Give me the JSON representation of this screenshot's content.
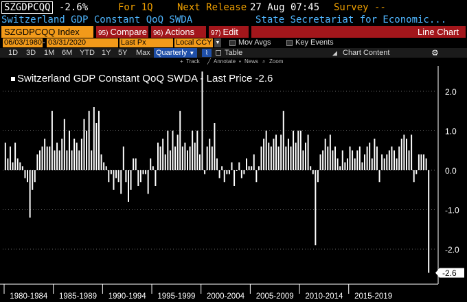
{
  "header": {
    "ticker": "SZGDPCQQ",
    "change": "-2.6%",
    "for": "For 1Q",
    "next_label": "Next Release",
    "next_value": "27 Aug 07:45",
    "survey": "Survey --"
  },
  "subheader": {
    "description": "Switzerland GDP Constant QoQ SWDA",
    "source": "State Secretariat for Economic..."
  },
  "toolbar": {
    "index": "SZGDPCQQ Index",
    "compare_num": "95)",
    "compare": "Compare",
    "actions_num": "96)",
    "actions": "Actions",
    "edit_num": "97)",
    "edit": "Edit",
    "chart_type": "Line Chart"
  },
  "options": {
    "start_date": "06/03/1980",
    "end_date": "03/31/2020",
    "field": "Last Px",
    "currency": "Local CCY",
    "mov_avgs": "Mov Avgs",
    "key_events": "Key Events"
  },
  "periods": {
    "items": [
      "1D",
      "3D",
      "1M",
      "6M",
      "YTD",
      "1Y",
      "5Y",
      "Max"
    ],
    "frequency": "Quarterly",
    "table": "Table",
    "chart_content": "Chart Content"
  },
  "tools": {
    "track": "Track",
    "annotate": "Annotate",
    "news": "News",
    "zoom": "Zoom"
  },
  "colors": {
    "amber": "#f0a000",
    "blue_text": "#4fb6ff",
    "red_button": "#a3161b",
    "orange_field": "#f29a1a",
    "bar": "#ffffff"
  },
  "chart_data": {
    "type": "bar",
    "title": "Switzerland GDP Constant QoQ SWDA - Last Price -2.6",
    "ylim": [
      -2.8,
      2.5
    ],
    "y_ticks": [
      -2.0,
      -1.0,
      0.0,
      1.0,
      2.0
    ],
    "y_tick_labels": [
      "-2.0",
      "-1.0",
      "0.0",
      "1.0",
      "2.0"
    ],
    "last_value_label": "-2.6",
    "x_labels": [
      "1980-1984",
      "1985-1989",
      "1990-1994",
      "1995-1999",
      "2000-2004",
      "2005-2009",
      "2010-2014",
      "2015-2019"
    ],
    "values": [
      0.7,
      0.3,
      0.6,
      0.2,
      0.7,
      0.3,
      0.2,
      0.1,
      -0.2,
      -0.3,
      -1.2,
      -0.5,
      -0.3,
      0.4,
      0.5,
      0.6,
      0.8,
      0.6,
      0.6,
      1.5,
      0.5,
      0.7,
      0.5,
      0.8,
      1.3,
      0.5,
      1.0,
      0.5,
      0.8,
      0.7,
      0.5,
      0.8,
      1.3,
      1.0,
      1.5,
      0.5,
      1.6,
      1.2,
      1.5,
      0.4,
      0.2,
      0.1,
      -0.3,
      -0.1,
      -0.5,
      -0.2,
      -0.3,
      -0.6,
      0.6,
      -0.3,
      -0.8,
      -0.5,
      0.3,
      0.3,
      -0.4,
      -0.3,
      -0.1,
      -0.1,
      -0.6,
      0.3,
      0.1,
      -0.4,
      0.7,
      0.6,
      0.8,
      0.4,
      1.0,
      0.5,
      1.0,
      0.6,
      0.9,
      1.5,
      0.6,
      0.7,
      0.5,
      0.6,
      1.0,
      0.7,
      1.0,
      0.4,
      2.5,
      -0.1,
      0.6,
      0.8,
      0.6,
      1.2,
      0.3,
      -0.2,
      0.1,
      -0.3,
      -0.1,
      -0.1,
      0.2,
      -0.4,
      0.0,
      0.2,
      -0.2,
      -0.1,
      0.3,
      0.1,
      0.1,
      0.4,
      -0.3,
      0.1,
      0.6,
      0.8,
      1.0,
      0.7,
      0.6,
      0.8,
      0.9,
      0.6,
      0.9,
      1.5,
      0.6,
      0.8,
      0.6,
      1.0,
      0.7,
      1.0,
      1.0,
      0.5,
      0.7,
      0.9,
      0.1,
      -0.1,
      -1.9,
      -0.3,
      0.4,
      0.5,
      0.8,
      0.6,
      0.9,
      0.5,
      0.6,
      0.3,
      0.1,
      0.5,
      0.2,
      0.3,
      0.6,
      0.5,
      0.3,
      0.5,
      0.6,
      0.2,
      0.4,
      0.6,
      0.7,
      0.3,
      0.8,
      0.6,
      -0.3,
      0.4,
      0.3,
      0.4,
      0.5,
      0.6,
      0.5,
      0.3,
      0.6,
      0.8,
      0.9,
      0.8,
      0.5,
      0.9,
      -0.3,
      -0.1,
      0.4,
      0.4,
      0.4,
      0.3,
      -2.6
    ]
  }
}
